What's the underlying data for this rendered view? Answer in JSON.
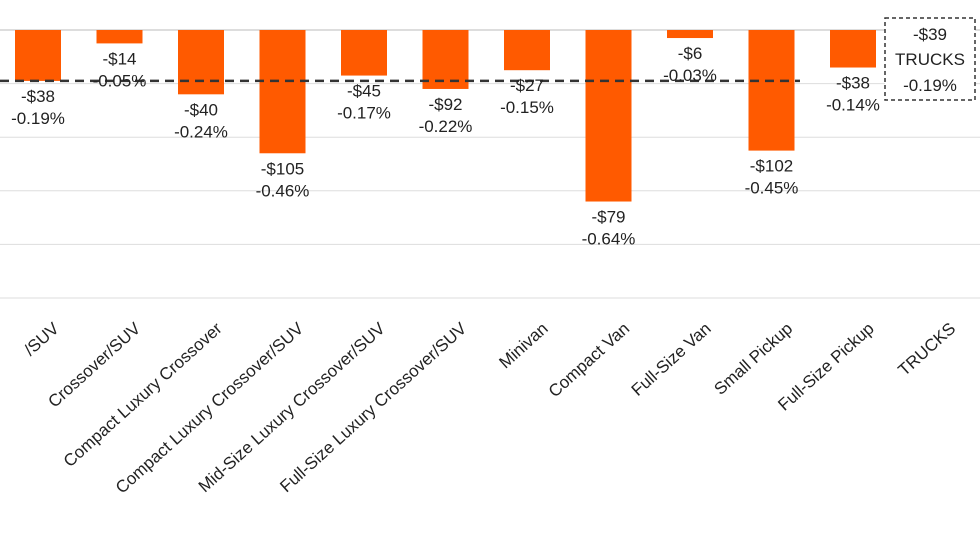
{
  "chart_data": {
    "type": "bar",
    "categories": [
      "Mid-Size Crossover/SUV",
      "Full-Size Crossover/SUV",
      "Compact Luxury Crossover",
      "Compact Luxury Crossover/SUV",
      "Mid-Size Luxury Crossover/SUV",
      "Full-Size Luxury Crossover/SUV",
      "Minivan",
      "Compact Van",
      "Full-Size Van",
      "Small Pickup",
      "Full-Size Pickup",
      "TRUCKS"
    ],
    "category_labels": [
      "/SUV",
      "Crossover/SUV",
      "Compact Luxury Crossover",
      "Compact Luxury Crossover/SUV",
      "Mid-Size Luxury Crossover/SUV",
      "Full-Size Luxury Crossover/SUV",
      "Minivan",
      "Compact Van",
      "Full-Size Van",
      "Small Pickup",
      "Full-Size Pickup",
      "TRUCKS"
    ],
    "values": [
      -0.19,
      -0.05,
      -0.24,
      -0.46,
      -0.17,
      -0.22,
      -0.15,
      -0.64,
      -0.03,
      -0.45,
      -0.14,
      -0.19
    ],
    "dollar_labels": [
      "-$38",
      "-$14",
      "-$40",
      "-$105",
      "-$45",
      "-$92",
      "-$27",
      "-$79",
      "-$6",
      "-$102",
      "-$38",
      "-$39"
    ],
    "pct_labels": [
      "-0.19%",
      "-0.05%",
      "-0.24%",
      "-0.46%",
      "-0.17%",
      "-0.22%",
      "-0.15%",
      "-0.64%",
      "-0.03%",
      "-0.45%",
      "-0.14%",
      "-0.19%"
    ],
    "summary_box": {
      "dollar": "-$39",
      "name": "TRUCKS",
      "pct": "-0.19%"
    },
    "reference_line_value": -0.19,
    "ylim": [
      -1.0,
      0
    ],
    "grid": true,
    "bar_color": "#ff5a00",
    "gridline_color": "#dddddd",
    "reference_line_color": "#333333"
  }
}
